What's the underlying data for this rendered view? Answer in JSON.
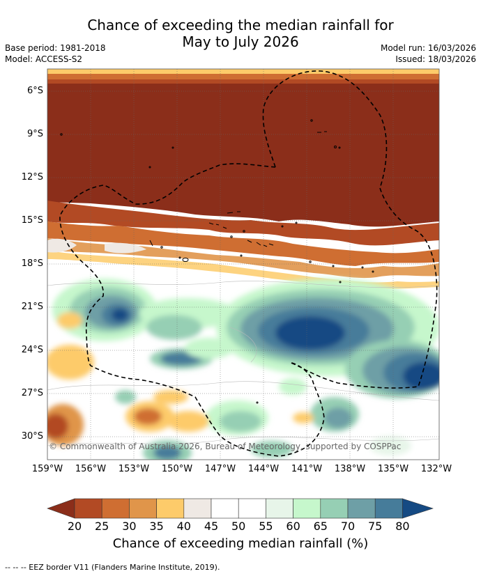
{
  "title_line1": "Chance of exceeding the median rainfall for",
  "title_line2": "May to July 2026",
  "base_period": "Base period: 1981-2018",
  "model": "Model: ACCESS-S2",
  "model_run": "Model run: 16/03/2026",
  "issued": "Issued: 18/03/2026",
  "copyright": "© Commonwealth of Australia 2026, Bureau of Meteorology, supported by COSPPac",
  "lat_ticks": [
    "6°S",
    "9°S",
    "12°S",
    "15°S",
    "18°S",
    "21°S",
    "24°S",
    "27°S",
    "30°S"
  ],
  "lon_ticks": [
    "159°W",
    "156°W",
    "153°W",
    "150°W",
    "147°W",
    "144°W",
    "141°W",
    "138°W",
    "135°W",
    "132°W"
  ],
  "colorbar": {
    "label": "Chance of exceeding median rainfall (%)",
    "ticks": [
      "20",
      "25",
      "30",
      "35",
      "40",
      "45",
      "50",
      "55",
      "60",
      "65",
      "70",
      "75",
      "80"
    ],
    "colors": [
      "#8b2e1a",
      "#b24a24",
      "#cf6e32",
      "#e0954a",
      "#fdcb6a",
      "#efe9e4",
      "#ffffff",
      "#ffffff",
      "#e7f5e9",
      "#c6f7cc",
      "#96cfb4",
      "#6e9fa6",
      "#467c9a",
      "#154a83"
    ]
  },
  "legend_text": "--  --  -- EEZ border V11 (Flanders Marine Institute, 2019)."
}
